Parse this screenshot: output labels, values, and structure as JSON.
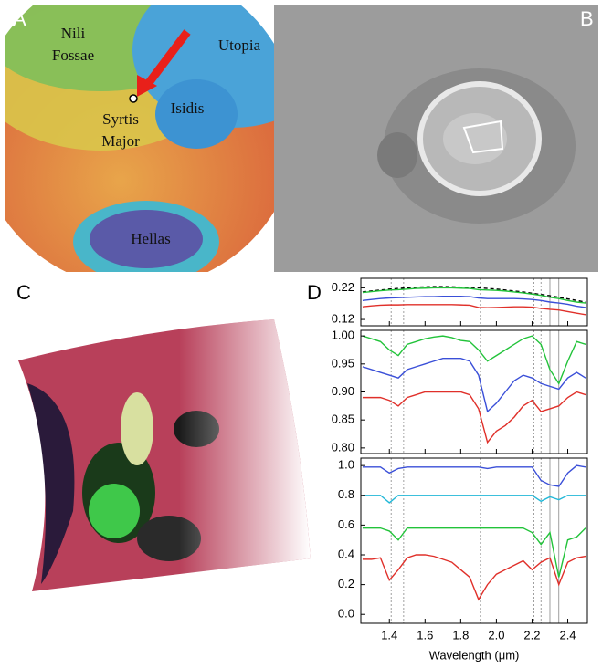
{
  "panels": {
    "A": {
      "label": "A",
      "places": [
        "Nili Fossae",
        "Utopia",
        "Isidis",
        "Syrtis Major",
        "Hellas"
      ]
    },
    "B": {
      "label": "B"
    },
    "C": {
      "label": "C"
    },
    "D": {
      "label": "D"
    }
  },
  "chart_data": [
    {
      "type": "line",
      "x": [
        1.25,
        1.3,
        1.35,
        1.4,
        1.45,
        1.5,
        1.55,
        1.6,
        1.65,
        1.7,
        1.75,
        1.8,
        1.85,
        1.9,
        1.95,
        2.0,
        2.05,
        2.1,
        2.15,
        2.2,
        2.25,
        2.3,
        2.35,
        2.4,
        2.45,
        2.5
      ],
      "ylim": [
        0.1,
        0.25
      ],
      "yticks": [
        0.12,
        0.22
      ],
      "series": [
        {
          "color": "#000000",
          "dash": true,
          "values": [
            0.207,
            0.21,
            0.213,
            0.216,
            0.218,
            0.22,
            0.222,
            0.223,
            0.224,
            0.224,
            0.223,
            0.222,
            0.221,
            0.22,
            0.218,
            0.216,
            0.213,
            0.21,
            0.207,
            0.203,
            0.199,
            0.195,
            0.19,
            0.185,
            0.18,
            0.175
          ]
        },
        {
          "color": "#22c33a",
          "values": [
            0.205,
            0.208,
            0.211,
            0.213,
            0.214,
            0.216,
            0.218,
            0.219,
            0.22,
            0.22,
            0.22,
            0.219,
            0.218,
            0.214,
            0.213,
            0.212,
            0.21,
            0.207,
            0.204,
            0.2,
            0.196,
            0.19,
            0.186,
            0.18,
            0.175,
            0.172
          ]
        },
        {
          "color": "#3a4fd8",
          "values": [
            0.18,
            0.183,
            0.186,
            0.188,
            0.189,
            0.19,
            0.191,
            0.192,
            0.192,
            0.193,
            0.193,
            0.193,
            0.192,
            0.188,
            0.186,
            0.186,
            0.186,
            0.186,
            0.185,
            0.183,
            0.18,
            0.175,
            0.172,
            0.168,
            0.162,
            0.158
          ]
        },
        {
          "color": "#e0302a",
          "values": [
            0.16,
            0.163,
            0.165,
            0.166,
            0.166,
            0.167,
            0.167,
            0.167,
            0.167,
            0.167,
            0.167,
            0.166,
            0.165,
            0.158,
            0.157,
            0.158,
            0.159,
            0.16,
            0.16,
            0.159,
            0.155,
            0.152,
            0.15,
            0.145,
            0.14,
            0.135
          ]
        }
      ]
    },
    {
      "type": "line",
      "x": [
        1.25,
        1.3,
        1.35,
        1.4,
        1.45,
        1.5,
        1.55,
        1.6,
        1.65,
        1.7,
        1.75,
        1.8,
        1.85,
        1.9,
        1.95,
        2.0,
        2.05,
        2.1,
        2.15,
        2.2,
        2.25,
        2.3,
        2.35,
        2.4,
        2.45,
        2.5
      ],
      "ylim": [
        0.79,
        1.01
      ],
      "yticks": [
        {
          "value": 1,
          "label": "1.00"
        },
        0.95,
        {
          "value": 0.9,
          "label": "0.90"
        },
        0.85,
        {
          "value": 0.8,
          "label": "0.80"
        }
      ],
      "series": [
        {
          "color": "#22c33a",
          "values": [
            1.0,
            0.995,
            0.99,
            0.975,
            0.965,
            0.985,
            0.99,
            0.995,
            0.998,
            1.0,
            0.997,
            0.992,
            0.99,
            0.975,
            0.955,
            0.965,
            0.975,
            0.985,
            0.995,
            1.0,
            0.985,
            0.94,
            0.915,
            0.955,
            0.99,
            0.985
          ]
        },
        {
          "color": "#3a4fd8",
          "values": [
            0.945,
            0.94,
            0.935,
            0.93,
            0.925,
            0.94,
            0.945,
            0.95,
            0.955,
            0.96,
            0.96,
            0.96,
            0.955,
            0.93,
            0.865,
            0.88,
            0.9,
            0.92,
            0.93,
            0.925,
            0.915,
            0.91,
            0.905,
            0.925,
            0.935,
            0.925
          ]
        },
        {
          "color": "#e0302a",
          "values": [
            0.89,
            0.89,
            0.89,
            0.885,
            0.875,
            0.89,
            0.895,
            0.9,
            0.9,
            0.9,
            0.9,
            0.9,
            0.895,
            0.87,
            0.81,
            0.83,
            0.84,
            0.855,
            0.875,
            0.885,
            0.865,
            0.87,
            0.875,
            0.89,
            0.9,
            0.895
          ]
        }
      ]
    },
    {
      "type": "line",
      "x": [
        1.25,
        1.3,
        1.35,
        1.4,
        1.45,
        1.5,
        1.55,
        1.6,
        1.65,
        1.7,
        1.75,
        1.8,
        1.85,
        1.9,
        1.95,
        2.0,
        2.05,
        2.1,
        2.15,
        2.2,
        2.25,
        2.3,
        2.35,
        2.4,
        2.45,
        2.5
      ],
      "x_label": "Wavelength (μm)",
      "xlim": [
        1.24,
        2.51
      ],
      "xticks": [
        1.4,
        1.6,
        1.8,
        {
          "value": 2,
          "label": "2.0"
        },
        2.2,
        2.4
      ],
      "ref_lines": [
        1.41,
        1.48,
        1.91,
        2.21,
        2.25,
        2.3,
        2.35
      ],
      "ylim": [
        -0.06,
        1.05
      ],
      "yticks": [
        {
          "value": 1,
          "label": "1.0"
        },
        0.8,
        0.6,
        0.4,
        0.2,
        {
          "value": 0,
          "label": "0.0"
        }
      ],
      "series": [
        {
          "color": "#3a4fd8",
          "values": [
            0.99,
            0.99,
            0.99,
            0.95,
            0.98,
            0.99,
            0.99,
            0.99,
            0.99,
            0.99,
            0.99,
            0.99,
            0.99,
            0.99,
            0.98,
            0.99,
            0.99,
            0.99,
            0.99,
            0.99,
            0.9,
            0.87,
            0.86,
            0.95,
            1.0,
            0.99
          ]
        },
        {
          "color": "#22b8d8",
          "values": [
            0.8,
            0.8,
            0.8,
            0.75,
            0.8,
            0.8,
            0.8,
            0.8,
            0.8,
            0.8,
            0.8,
            0.8,
            0.8,
            0.8,
            0.8,
            0.8,
            0.8,
            0.8,
            0.8,
            0.8,
            0.76,
            0.79,
            0.77,
            0.8,
            0.8,
            0.8
          ]
        },
        {
          "color": "#22c33a",
          "values": [
            0.58,
            0.58,
            0.58,
            0.56,
            0.5,
            0.58,
            0.58,
            0.58,
            0.58,
            0.58,
            0.58,
            0.58,
            0.58,
            0.58,
            0.58,
            0.58,
            0.58,
            0.58,
            0.58,
            0.55,
            0.47,
            0.55,
            0.25,
            0.5,
            0.52,
            0.58
          ]
        },
        {
          "color": "#e0302a",
          "values": [
            0.37,
            0.37,
            0.38,
            0.23,
            0.3,
            0.38,
            0.4,
            0.4,
            0.39,
            0.37,
            0.35,
            0.3,
            0.25,
            0.1,
            0.2,
            0.27,
            0.3,
            0.33,
            0.36,
            0.3,
            0.35,
            0.38,
            0.2,
            0.35,
            0.38,
            0.39
          ]
        }
      ]
    }
  ]
}
